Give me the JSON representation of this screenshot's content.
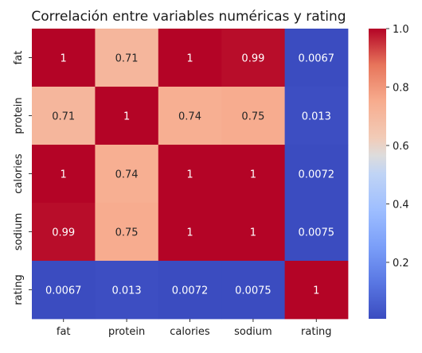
{
  "chart_data": {
    "type": "heatmap",
    "title": "Correlación entre variables numéricas y rating",
    "x_labels": [
      "fat",
      "protein",
      "calories",
      "sodium",
      "rating"
    ],
    "y_labels": [
      "fat",
      "protein",
      "calories",
      "sodium",
      "rating"
    ],
    "values": [
      [
        1,
        0.71,
        1,
        0.99,
        0.0067
      ],
      [
        0.71,
        1,
        0.74,
        0.75,
        0.013
      ],
      [
        1,
        0.74,
        1,
        1,
        0.0072
      ],
      [
        0.99,
        0.75,
        1,
        1,
        0.0075
      ],
      [
        0.0067,
        0.013,
        0.0072,
        0.0075,
        1
      ]
    ],
    "cell_labels": [
      [
        "1",
        "0.71",
        "1",
        "0.99",
        "0.0067"
      ],
      [
        "0.71",
        "1",
        "0.74",
        "0.75",
        "0.013"
      ],
      [
        "1",
        "0.74",
        "1",
        "1",
        "0.0072"
      ],
      [
        "0.99",
        "0.75",
        "1",
        "1",
        "0.0075"
      ],
      [
        "0.0067",
        "0.013",
        "0.0072",
        "0.0075",
        "1"
      ]
    ],
    "colormap": "coolwarm",
    "colorbar": {
      "range": [
        0.0067,
        1.0
      ],
      "ticks": [
        0.2,
        0.4,
        0.6,
        0.8,
        1.0
      ],
      "tick_labels": [
        "0.2",
        "0.4",
        "0.6",
        "0.8",
        "1.0"
      ]
    }
  }
}
